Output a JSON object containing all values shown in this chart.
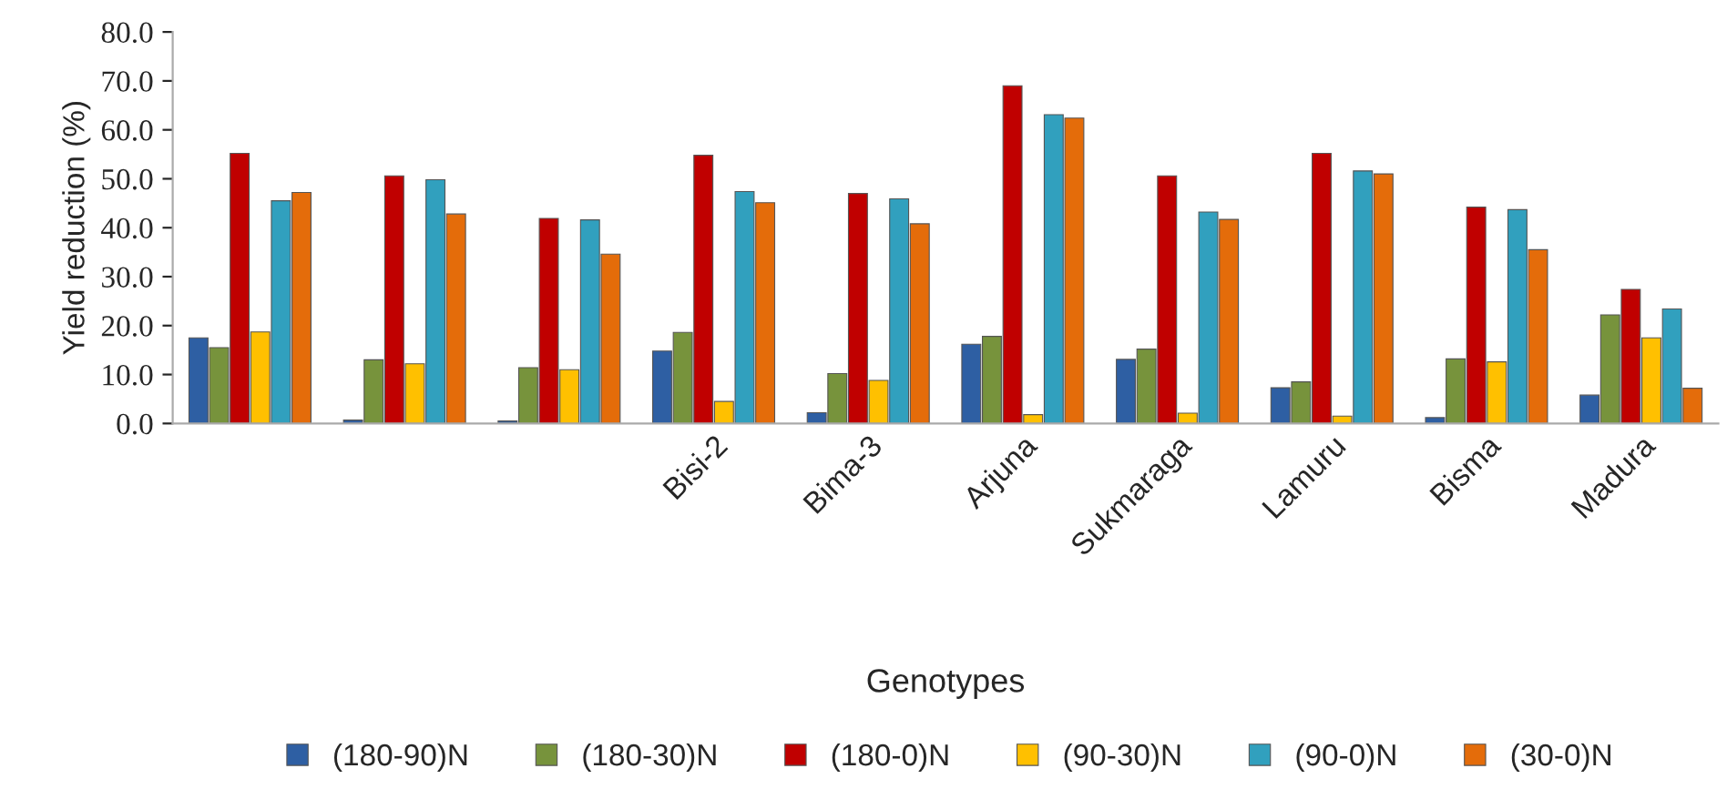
{
  "chart_data": {
    "type": "bar",
    "xlabel": "Genotypes",
    "ylabel": "Yield reduction (%)",
    "categories": [
      null,
      null,
      null,
      "Bisi-2",
      "Bima-3",
      "Arjuna",
      "Sukmaraga",
      "Lamuru",
      "Bisma",
      "Madura"
    ],
    "series": [
      {
        "name": "(180-90)N",
        "color": "#2e5fa3",
        "values": [
          17.5,
          0.7,
          0.5,
          14.8,
          2.2,
          16.2,
          13.1,
          7.3,
          1.2,
          5.8
        ]
      },
      {
        "name": "(180-30)N",
        "color": "#77933c",
        "values": [
          15.5,
          13.0,
          11.4,
          18.6,
          10.2,
          17.8,
          15.2,
          8.5,
          13.2,
          22.2
        ]
      },
      {
        "name": "(180-0)N",
        "color": "#c00000",
        "values": [
          55.2,
          50.6,
          41.9,
          54.8,
          47.0,
          69.0,
          50.6,
          55.2,
          44.2,
          27.4
        ]
      },
      {
        "name": "(90-30)N",
        "color": "#ffc000",
        "values": [
          18.7,
          12.2,
          11.0,
          4.5,
          8.8,
          1.8,
          2.1,
          1.5,
          12.6,
          17.5
        ]
      },
      {
        "name": "(90-0)N",
        "color": "#31a0be",
        "values": [
          45.5,
          49.8,
          41.6,
          47.4,
          45.9,
          63.1,
          43.2,
          51.6,
          43.7,
          23.4
        ]
      },
      {
        "name": "(30-0)N",
        "color": "#e46c0a",
        "values": [
          47.2,
          42.8,
          34.6,
          45.1,
          40.8,
          62.4,
          41.7,
          51.0,
          35.5,
          7.2
        ]
      }
    ],
    "ylim": [
      0,
      80
    ],
    "yticks": [
      {
        "value": 0,
        "label": "0.0"
      },
      {
        "value": 10,
        "label": "10.0"
      },
      {
        "value": 20,
        "label": "20.0"
      },
      {
        "value": 30,
        "label": "30.0"
      },
      {
        "value": 40,
        "label": "40.0"
      },
      {
        "value": 50,
        "label": "50.0"
      },
      {
        "value": 60,
        "label": "60.0"
      },
      {
        "value": 70,
        "label": "70.0"
      },
      {
        "value": 80,
        "label": "80.0"
      }
    ],
    "grid": false,
    "legend": "bottom"
  }
}
